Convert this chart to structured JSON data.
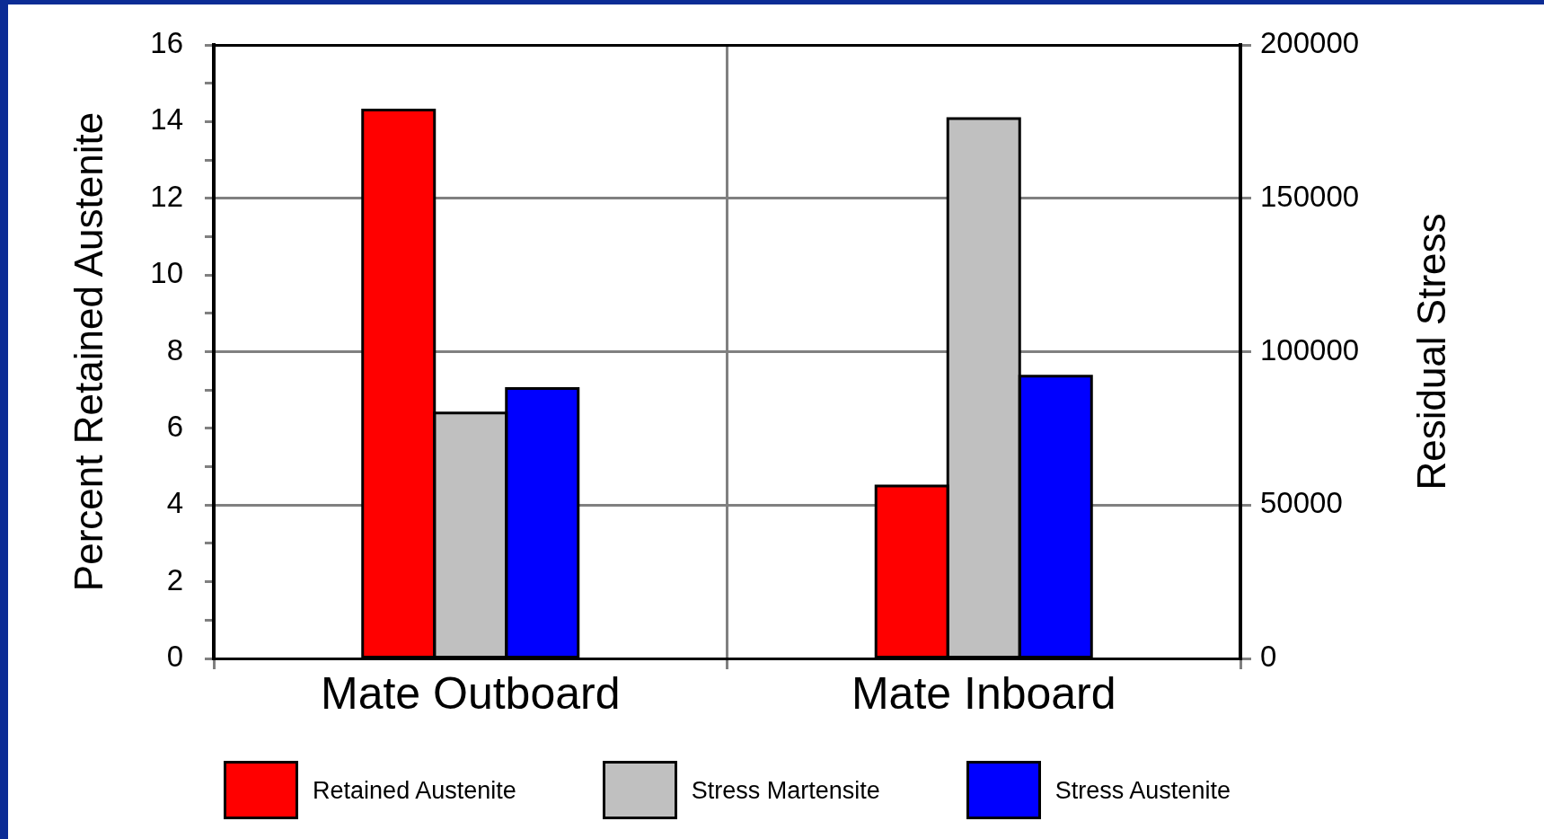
{
  "chart_data": {
    "type": "bar",
    "categories": [
      "Mate Outboard",
      "Mate Inboard"
    ],
    "series": [
      {
        "name": "Retained Austenite",
        "color": "#ff0000",
        "values": [
          14.3,
          4.5
        ]
      },
      {
        "name": "Stress Martensite",
        "color": "#c0c0c0",
        "values": [
          80000,
          176000
        ],
        "axis": "y2"
      },
      {
        "name": "Stress Austenite",
        "color": "#0000ff",
        "values": [
          88000,
          92000
        ],
        "axis": "y2"
      }
    ],
    "ylabel": "Percent Retained Austenite",
    "y2label": "Residual Stress",
    "ylim": [
      0,
      16
    ],
    "yticks": [
      0,
      {
        "value": 1,
        "label": null
      },
      2,
      {
        "value": 3,
        "label": null
      },
      4,
      {
        "value": 5,
        "label": null
      },
      6,
      {
        "value": 7,
        "label": null
      },
      8,
      {
        "value": 9,
        "label": null
      },
      10,
      {
        "value": 11,
        "label": null
      },
      12,
      {
        "value": 13,
        "label": null
      },
      14,
      {
        "value": 15,
        "label": null
      },
      16
    ],
    "y2lim": [
      0,
      200000
    ],
    "y2ticks": [
      0,
      50000,
      100000,
      150000,
      200000
    ],
    "grid": true,
    "legend": "bottom"
  }
}
